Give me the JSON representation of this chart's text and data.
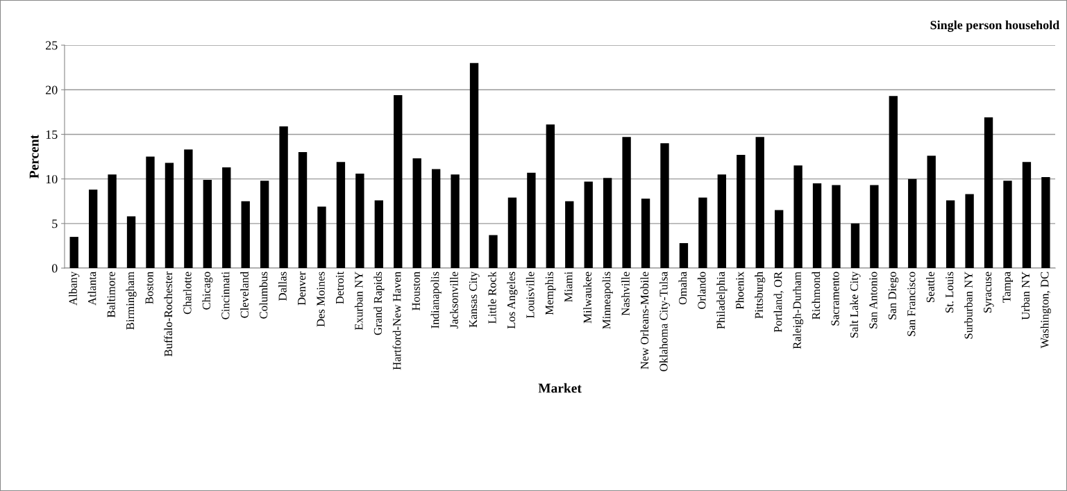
{
  "chart_data": {
    "type": "bar",
    "title": "Single person household",
    "xlabel": "Market",
    "ylabel": "Percent",
    "categories": [
      "Albany",
      "Atlanta",
      "Baltimore",
      "Birmingham",
      "Boston",
      "Buffalo-Rochester",
      "Charlotte",
      "Chicago",
      "Cincinnati",
      "Cleveland",
      "Columbus",
      "Dallas",
      "Denver",
      "Des Moines",
      "Detroit",
      "Exurban NY",
      "Grand Rapids",
      "Hartford-New Haven",
      "Houston",
      "Indianapolis",
      "Jacksonville",
      "Kansas City",
      "Little Rock",
      "Los Angeles",
      "Louisville",
      "Memphis",
      "Miami",
      "Milwaukee",
      "Minneapolis",
      "Nashville",
      "New Orleans-Mobile",
      "Oklahoma City-Tulsa",
      "Omaha",
      "Orlando",
      "Philadelphia",
      "Phoenix",
      "Pittsburgh",
      "Portland, OR",
      "Raleigh-Durham",
      "Richmond",
      "Sacramento",
      "Salt Lake City",
      "San Antonio",
      "San Diego",
      "San Francisco",
      "Seattle",
      "St. Louis",
      "Surburban NY",
      "Syracuse",
      "Tampa",
      "Urban NY",
      "Washington, DC"
    ],
    "values": [
      3.5,
      8.8,
      10.5,
      5.8,
      12.5,
      11.8,
      13.3,
      9.9,
      11.3,
      7.5,
      9.8,
      15.9,
      13.0,
      6.9,
      11.9,
      10.6,
      7.6,
      19.4,
      12.3,
      11.1,
      10.5,
      23.0,
      3.7,
      7.9,
      10.7,
      16.1,
      7.5,
      9.7,
      10.1,
      14.7,
      7.8,
      14.0,
      2.8,
      7.9,
      10.5,
      12.7,
      14.7,
      6.5,
      11.5,
      9.5,
      9.3,
      5.0,
      9.3,
      19.3,
      10.0,
      12.6,
      7.6,
      8.3,
      16.9,
      9.8,
      11.9,
      10.2
    ],
    "color": "#000000",
    "ylim": [
      0,
      25
    ],
    "yticks": [
      0,
      5,
      10,
      15,
      20,
      25
    ],
    "grid": "y",
    "legend": false
  }
}
